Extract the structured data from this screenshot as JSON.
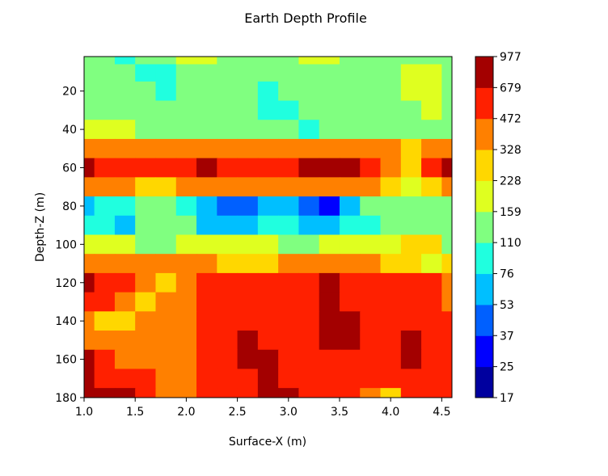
{
  "chart_data": {
    "type": "heatmap",
    "subtype": "filled-contour",
    "title": "Earth Depth Profile",
    "xlabel": "Surface-X (m)",
    "ylabel": "Depth-Z (m)",
    "xlim": [
      1.0,
      4.6
    ],
    "ylim": [
      180,
      2
    ],
    "y_inverted": true,
    "x_ticks": [
      "1.0",
      "1.5",
      "2.0",
      "2.5",
      "3.0",
      "3.5",
      "4.0",
      "4.5"
    ],
    "x_tick_values": [
      1.0,
      1.5,
      2.0,
      2.5,
      3.0,
      3.5,
      4.0,
      4.5
    ],
    "y_ticks": [
      "20",
      "40",
      "60",
      "80",
      "100",
      "120",
      "140",
      "160",
      "180"
    ],
    "y_tick_values": [
      20,
      40,
      60,
      80,
      100,
      120,
      140,
      160,
      180
    ],
    "colorbar": {
      "levels": [
        17,
        25,
        37,
        53,
        76,
        110,
        159,
        228,
        328,
        472,
        679,
        977
      ],
      "labels": [
        "17",
        "25",
        "37",
        "53",
        "76",
        "110",
        "159",
        "228",
        "328",
        "472",
        "679",
        "977"
      ],
      "colors": [
        "#00009f",
        "#0000ff",
        "#0060ff",
        "#00bfff",
        "#20ffdf",
        "#80ff80",
        "#dfff20",
        "#ffd700",
        "#ff8000",
        "#ff2000",
        "#a30000"
      ]
    },
    "x": [
      1.0,
      1.2,
      1.4,
      1.6,
      1.8,
      2.0,
      2.2,
      2.4,
      2.6,
      2.8,
      3.0,
      3.2,
      3.4,
      3.6,
      3.8,
      4.0,
      4.2,
      4.4,
      4.6
    ],
    "z": [
      2,
      10,
      20,
      30,
      40,
      50,
      60,
      70,
      80,
      90,
      100,
      110,
      120,
      130,
      140,
      150,
      160,
      170,
      180
    ],
    "band_index_grid": [
      [
        5,
        5,
        4,
        5,
        5,
        6,
        6,
        5,
        5,
        5,
        5,
        6,
        6,
        5,
        5,
        5,
        5,
        5,
        5
      ],
      [
        5,
        5,
        5,
        4,
        4,
        5,
        5,
        5,
        5,
        5,
        5,
        5,
        5,
        5,
        5,
        5,
        6,
        6,
        5
      ],
      [
        5,
        5,
        5,
        5,
        4,
        5,
        5,
        5,
        5,
        4,
        5,
        5,
        5,
        5,
        5,
        5,
        6,
        6,
        5
      ],
      [
        5,
        5,
        5,
        5,
        5,
        5,
        5,
        5,
        5,
        4,
        4,
        5,
        5,
        5,
        5,
        5,
        5,
        6,
        5
      ],
      [
        6,
        6,
        6,
        5,
        5,
        5,
        5,
        5,
        5,
        5,
        5,
        4,
        5,
        5,
        5,
        5,
        5,
        5,
        5
      ],
      [
        8,
        8,
        8,
        8,
        8,
        8,
        8,
        8,
        8,
        8,
        8,
        8,
        8,
        8,
        8,
        8,
        7,
        8,
        8
      ],
      [
        10,
        9,
        9,
        9,
        9,
        9,
        10,
        9,
        9,
        9,
        9,
        10,
        10,
        10,
        9,
        8,
        7,
        9,
        10
      ],
      [
        8,
        8,
        8,
        7,
        7,
        8,
        8,
        8,
        8,
        8,
        8,
        8,
        8,
        8,
        8,
        7,
        6,
        7,
        8
      ],
      [
        3,
        4,
        4,
        5,
        5,
        4,
        3,
        2,
        2,
        3,
        3,
        2,
        1,
        3,
        5,
        5,
        5,
        5,
        5
      ],
      [
        4,
        4,
        3,
        5,
        5,
        5,
        3,
        3,
        3,
        4,
        4,
        3,
        3,
        4,
        4,
        5,
        5,
        5,
        5
      ],
      [
        6,
        6,
        6,
        5,
        5,
        6,
        6,
        6,
        6,
        6,
        5,
        5,
        6,
        6,
        6,
        6,
        7,
        7,
        5
      ],
      [
        8,
        8,
        8,
        8,
        8,
        8,
        8,
        7,
        7,
        7,
        8,
        8,
        8,
        8,
        8,
        7,
        7,
        6,
        7
      ],
      [
        10,
        9,
        9,
        8,
        7,
        8,
        9,
        9,
        9,
        9,
        9,
        9,
        10,
        9,
        9,
        9,
        9,
        9,
        8
      ],
      [
        9,
        9,
        8,
        7,
        8,
        8,
        9,
        9,
        9,
        9,
        9,
        9,
        10,
        9,
        9,
        9,
        9,
        9,
        8
      ],
      [
        8,
        7,
        7,
        8,
        8,
        8,
        9,
        9,
        9,
        9,
        9,
        9,
        10,
        10,
        9,
        9,
        9,
        9,
        9
      ],
      [
        8,
        8,
        8,
        8,
        8,
        8,
        9,
        9,
        10,
        9,
        9,
        9,
        10,
        10,
        9,
        9,
        10,
        9,
        9
      ],
      [
        10,
        9,
        8,
        8,
        8,
        8,
        9,
        9,
        10,
        10,
        9,
        9,
        9,
        9,
        9,
        9,
        10,
        9,
        9
      ],
      [
        10,
        9,
        9,
        9,
        8,
        8,
        9,
        9,
        9,
        10,
        9,
        9,
        9,
        9,
        9,
        9,
        9,
        9,
        9
      ],
      [
        10,
        10,
        10,
        9,
        8,
        8,
        9,
        9,
        9,
        10,
        10,
        9,
        9,
        9,
        8,
        7,
        9,
        9,
        9
      ]
    ]
  }
}
